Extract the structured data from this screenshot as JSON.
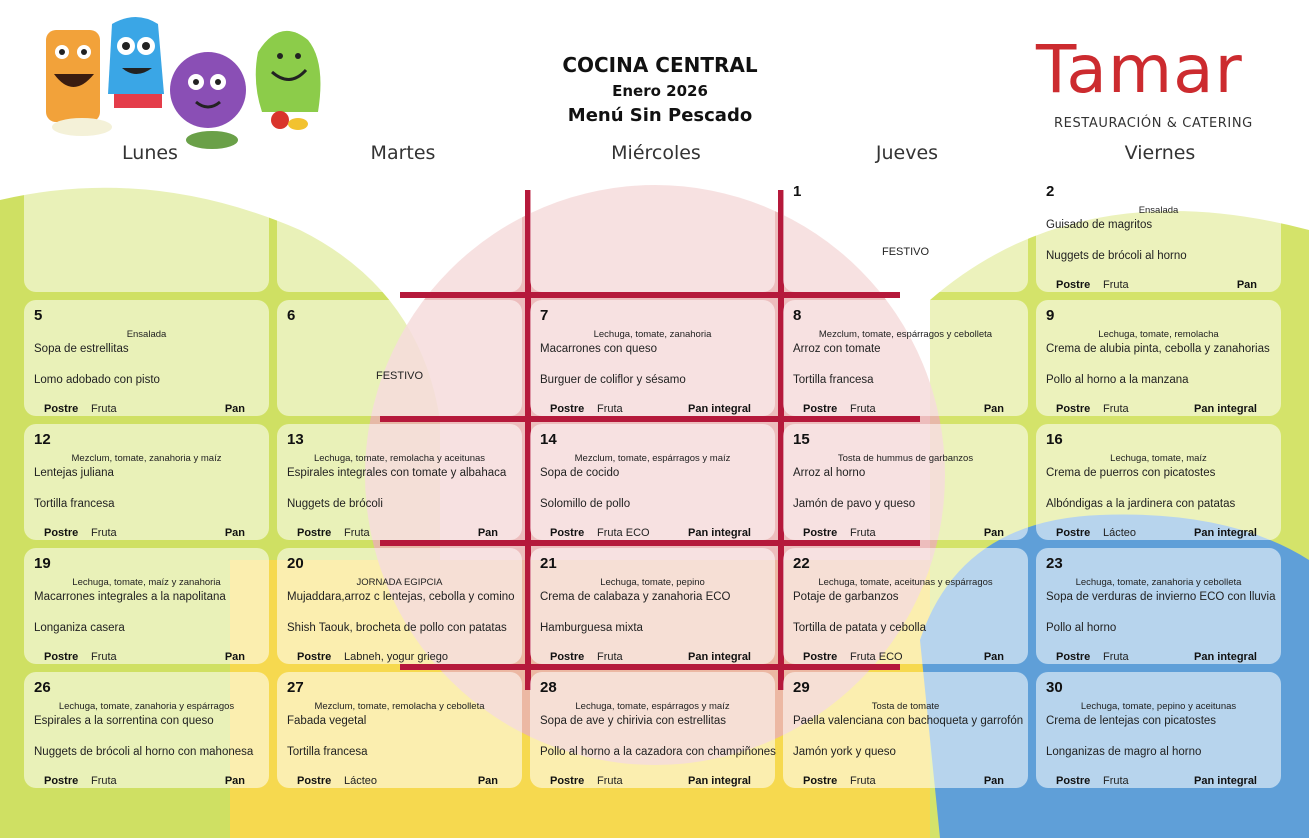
{
  "header": {
    "title": "COCINA CENTRAL",
    "month": "Enero 2026",
    "menu_type": "Menú Sin Pescado"
  },
  "logo": {
    "name": "Tamar",
    "subtitle": "RESTAURACIÓN & CATERING",
    "color": "#cc2b2f"
  },
  "mascots": [
    "orange-monster",
    "blue-monster",
    "purple-monster",
    "green-monster"
  ],
  "days": [
    "Lunes",
    "Martes",
    "Miércoles",
    "Jueves",
    "Viernes"
  ],
  "labels": {
    "postre": "Postre"
  },
  "colors": {
    "green": "#c8dc4a",
    "yellow": "#f4d24a",
    "red": "#e8a7a8",
    "blue": "#5a9bd4",
    "grid_line": "#b5193b"
  },
  "weeks": [
    [
      {},
      {},
      {},
      {
        "num": "1",
        "festivo": "FESTIVO"
      },
      {
        "num": "2",
        "starter": "Ensalada",
        "first": "Guisado de magritos",
        "second": "Nuggets de brócoli al horno",
        "dessert": "Fruta",
        "bread": "Pan"
      }
    ],
    [
      {
        "num": "5",
        "starter": "Ensalada",
        "first": "Sopa de estrellitas",
        "second": "Lomo adobado con pisto",
        "dessert": "Fruta",
        "bread": "Pan"
      },
      {
        "num": "6",
        "festivo": "FESTIVO"
      },
      {
        "num": "7",
        "starter": "Lechuga, tomate, zanahoria",
        "first": "Macarrones con queso",
        "second": "Burguer de coliflor y sésamo",
        "dessert": "Fruta",
        "bread": "Pan integral"
      },
      {
        "num": "8",
        "starter": "Mezclum, tomate, espárragos y cebolleta",
        "first": "Arroz con tomate",
        "second": "Tortilla francesa",
        "dessert": "Fruta",
        "bread": "Pan"
      },
      {
        "num": "9",
        "starter": "Lechuga, tomate, remolacha",
        "first": "Crema de alubia pinta, cebolla y zanahorias",
        "second": "Pollo al horno a la manzana",
        "dessert": "Fruta",
        "bread": "Pan integral"
      }
    ],
    [
      {
        "num": "12",
        "starter": "Mezclum, tomate, zanahoria y maíz",
        "first": "Lentejas juliana",
        "second": "Tortilla francesa",
        "dessert": "Fruta",
        "bread": "Pan"
      },
      {
        "num": "13",
        "starter": "Lechuga, tomate, remolacha y aceitunas",
        "first": "Espirales integrales con tomate y albahaca",
        "second": "Nuggets de brócoli",
        "dessert": "Fruta",
        "bread": "Pan"
      },
      {
        "num": "14",
        "starter": "Mezclum, tomate, espárragos y maíz",
        "first": "Sopa de cocido",
        "second": "Solomillo de pollo",
        "dessert": "Fruta ECO",
        "bread": "Pan integral"
      },
      {
        "num": "15",
        "starter": "Tosta de hummus de garbanzos",
        "first": "Arroz al horno",
        "second": "Jamón de pavo y queso",
        "dessert": "Fruta",
        "bread": "Pan"
      },
      {
        "num": "16",
        "starter": "Lechuga, tomate, maíz",
        "first": "Crema de puerros con picatostes",
        "second": "Albóndigas a la jardinera con patatas",
        "dessert": "Lácteo",
        "bread": "Pan integral"
      }
    ],
    [
      {
        "num": "19",
        "starter": "Lechuga, tomate, maíz y zanahoria",
        "first": "Macarrones integrales a la napolitana",
        "second": "Longaniza casera",
        "dessert": "Fruta",
        "bread": "Pan"
      },
      {
        "num": "20",
        "starter": "JORNADA EGIPCIA",
        "first": "Mujaddara,arroz c lentejas, cebolla y comino",
        "second": "Shish Taouk, brocheta de pollo con patatas",
        "dessert": "Labneh, yogur griego",
        "bread": ""
      },
      {
        "num": "21",
        "starter": "Lechuga, tomate, pepino",
        "first": "Crema de calabaza y zanahoria ECO",
        "second": "Hamburguesa mixta",
        "dessert": "Fruta",
        "bread": "Pan integral"
      },
      {
        "num": "22",
        "starter": "Lechuga, tomate, aceitunas y espárragos",
        "first": "Potaje de garbanzos",
        "second": "Tortilla de patata y cebolla",
        "dessert": "Fruta ECO",
        "bread": "Pan"
      },
      {
        "num": "23",
        "starter": "Lechuga, tomate, zanahoria y cebolleta",
        "first": "Sopa de verduras de invierno ECO con lluvia",
        "second": "Pollo al horno",
        "dessert": "Fruta",
        "bread": "Pan integral"
      }
    ],
    [
      {
        "num": "26",
        "starter": "Lechuga, tomate, zanahoria y espárragos",
        "first": "Espirales a la sorrentina con queso",
        "second": "Nuggets de brócoli al horno con mahonesa",
        "dessert": "Fruta",
        "bread": "Pan"
      },
      {
        "num": "27",
        "starter": "Mezclum, tomate, remolacha y cebolleta",
        "first": "Fabada vegetal",
        "second": "Tortilla francesa",
        "dessert": "Lácteo",
        "bread": "Pan"
      },
      {
        "num": "28",
        "starter": "Lechuga, tomate, espárragos y maíz",
        "first": "Sopa de ave y chirivia con estrellitas",
        "second": "Pollo al horno a la cazadora con champiñones",
        "dessert": "Fruta",
        "bread": "Pan integral"
      },
      {
        "num": "29",
        "starter": "Tosta de tomate",
        "first": "Paella valenciana con bachoqueta y garrofón",
        "second": "Jamón york y queso",
        "dessert": "Fruta",
        "bread": "Pan"
      },
      {
        "num": "30",
        "starter": "Lechuga, tomate, pepino y aceitunas",
        "first": "Crema de lentejas con picatostes",
        "second": "Longanizas de magro al horno",
        "dessert": "Fruta",
        "bread": "Pan integral"
      }
    ]
  ]
}
